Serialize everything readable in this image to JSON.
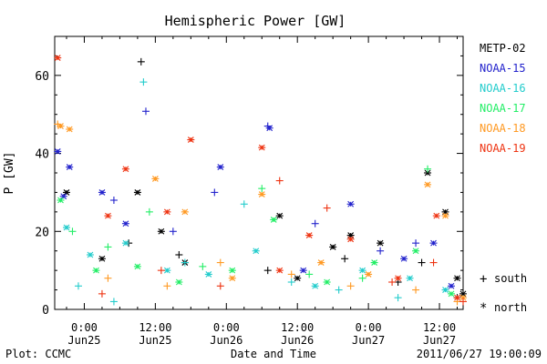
{
  "chart_data": {
    "type": "scatter",
    "title": "Hemispheric Power [GW]",
    "xlabel": "Date and Time",
    "ylabel": "P [GW]",
    "x_unit": "hours from 2011-06-24 19:00 UT",
    "xlim": [
      0,
      69
    ],
    "ylim": [
      0,
      70
    ],
    "yticks": [
      0,
      20,
      40,
      60
    ],
    "xticks": [
      {
        "x": 5,
        "time": "0:00",
        "date": "Jun25"
      },
      {
        "x": 17,
        "time": "12:00",
        "date": "Jun25"
      },
      {
        "x": 29,
        "time": "0:00",
        "date": "Jun26"
      },
      {
        "x": 41,
        "time": "12:00",
        "date": "Jun26"
      },
      {
        "x": 53,
        "time": "0:00",
        "date": "Jun27"
      },
      {
        "x": 65,
        "time": "12:00",
        "date": "Jun27"
      }
    ],
    "grid": false,
    "legend_position": "right",
    "marker_legend": {
      "south": "south",
      "north": "north",
      "south_symbol": "+",
      "north_symbol": "*"
    },
    "series": [
      {
        "name": "METP-02",
        "color": "#000000",
        "south": [
          [
            14.6,
            63.5
          ],
          [
            12.5,
            17
          ],
          [
            21,
            14
          ],
          [
            36,
            10
          ],
          [
            49,
            13
          ],
          [
            58,
            7
          ],
          [
            62,
            12
          ],
          [
            68,
            3
          ]
        ],
        "north": [
          [
            2,
            30
          ],
          [
            14,
            30
          ],
          [
            8,
            13
          ],
          [
            18,
            20
          ],
          [
            22,
            12
          ],
          [
            38,
            24
          ],
          [
            41,
            8
          ],
          [
            47,
            16
          ],
          [
            50,
            19
          ],
          [
            55,
            17
          ],
          [
            63,
            35
          ],
          [
            66,
            25
          ],
          [
            68,
            8
          ],
          [
            69,
            4
          ]
        ]
      },
      {
        "name": "NOAA-15",
        "color": "#2222cc",
        "south": [
          [
            15.4,
            50.8
          ],
          [
            10,
            28
          ],
          [
            20,
            20
          ],
          [
            27,
            30
          ],
          [
            36,
            47
          ],
          [
            44,
            22
          ],
          [
            55,
            15
          ],
          [
            61,
            17
          ]
        ],
        "north": [
          [
            0.5,
            40.5
          ],
          [
            1.5,
            29
          ],
          [
            2.5,
            36.5
          ],
          [
            8,
            30
          ],
          [
            12,
            22
          ],
          [
            28,
            36.5
          ],
          [
            36.3,
            46.5
          ],
          [
            42,
            10
          ],
          [
            50,
            27
          ],
          [
            59,
            13
          ],
          [
            64,
            17
          ],
          [
            67,
            6
          ]
        ]
      },
      {
        "name": "NOAA-16",
        "color": "#22cccc",
        "south": [
          [
            15,
            58.3
          ],
          [
            4,
            6
          ],
          [
            10,
            2
          ],
          [
            22,
            12
          ],
          [
            32,
            27
          ],
          [
            40,
            7
          ],
          [
            48,
            5
          ],
          [
            58,
            3
          ]
        ],
        "north": [
          [
            2,
            21
          ],
          [
            6,
            14
          ],
          [
            12,
            17
          ],
          [
            19,
            10
          ],
          [
            26,
            9
          ],
          [
            34,
            15
          ],
          [
            44,
            6
          ],
          [
            52,
            10
          ],
          [
            60,
            8
          ],
          [
            66,
            5
          ]
        ]
      },
      {
        "name": "NOAA-17",
        "color": "#22ee66",
        "south": [
          [
            3,
            20
          ],
          [
            9,
            16
          ],
          [
            16,
            25
          ],
          [
            25,
            11
          ],
          [
            35,
            31
          ],
          [
            43,
            9
          ],
          [
            52,
            8
          ],
          [
            63,
            36
          ]
        ],
        "north": [
          [
            1,
            28
          ],
          [
            7,
            10
          ],
          [
            14,
            11
          ],
          [
            21,
            7
          ],
          [
            30,
            10
          ],
          [
            37,
            23
          ],
          [
            46,
            7
          ],
          [
            54,
            12
          ],
          [
            61,
            15
          ],
          [
            67,
            4
          ]
        ]
      },
      {
        "name": "NOAA-18",
        "color": "#ff9922",
        "south": [
          [
            0.5,
            47.5
          ],
          [
            9,
            8
          ],
          [
            19,
            6
          ],
          [
            28,
            12
          ],
          [
            40,
            9
          ],
          [
            50,
            6
          ],
          [
            61,
            5
          ],
          [
            68,
            2
          ]
        ],
        "north": [
          [
            1,
            47
          ],
          [
            2.5,
            46.2
          ],
          [
            17,
            33.5
          ],
          [
            22,
            25
          ],
          [
            30,
            8
          ],
          [
            35,
            29.5
          ],
          [
            45,
            12
          ],
          [
            53,
            9
          ],
          [
            63,
            32
          ],
          [
            66,
            24
          ],
          [
            69,
            3
          ]
        ]
      },
      {
        "name": "NOAA-19",
        "color": "#ee3311",
        "south": [
          [
            8,
            4
          ],
          [
            18,
            10
          ],
          [
            28,
            6
          ],
          [
            38,
            33
          ],
          [
            46,
            26
          ],
          [
            57,
            7
          ],
          [
            64,
            12
          ],
          [
            69,
            2
          ]
        ],
        "north": [
          [
            0.5,
            64.5
          ],
          [
            9,
            24
          ],
          [
            12,
            36
          ],
          [
            19,
            25
          ],
          [
            23,
            43.5
          ],
          [
            35,
            41.5
          ],
          [
            38,
            10
          ],
          [
            43,
            19
          ],
          [
            50,
            18
          ],
          [
            58,
            8
          ],
          [
            64.5,
            24
          ],
          [
            68,
            3
          ]
        ]
      }
    ]
  },
  "footer": {
    "plot_label": "Plot: CCMC",
    "timestamp": "2011/06/27 19:00:09"
  }
}
